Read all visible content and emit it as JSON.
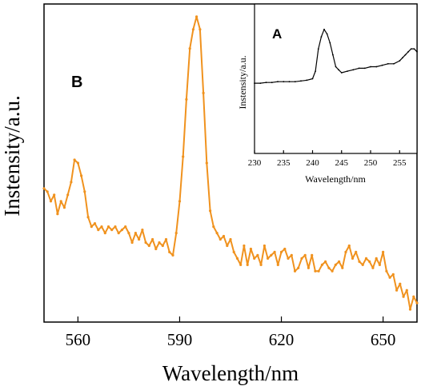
{
  "chart_data": [
    {
      "id": "main",
      "type": "line",
      "panel_label": "B",
      "title": "",
      "xlabel": "Wavelength/nm",
      "ylabel": "Instensity/a.u.",
      "xlim": [
        550,
        660
      ],
      "ylim": [
        0,
        100
      ],
      "y_ticks_labeled": false,
      "x_ticks": [
        560,
        590,
        620,
        650
      ],
      "x_tick_labels": [
        "560",
        "590",
        "620",
        "650"
      ],
      "line_color": "#F0921E",
      "grid": false,
      "legend": "none",
      "series": [
        {
          "x": [
            550,
            551,
            552,
            553,
            554,
            555,
            556,
            557,
            558,
            559,
            560,
            561,
            562,
            563,
            564,
            565,
            566,
            567,
            568,
            569,
            570,
            571,
            572,
            573,
            574,
            575,
            576,
            577,
            578,
            579,
            580,
            581,
            582,
            583,
            584,
            585,
            586,
            587,
            588,
            589,
            590,
            591,
            592,
            593,
            594,
            595,
            596,
            597,
            598,
            599,
            600,
            601,
            602,
            603,
            604,
            605,
            606,
            607,
            608,
            609,
            610,
            611,
            612,
            613,
            614,
            615,
            616,
            617,
            618,
            619,
            620,
            621,
            622,
            623,
            624,
            625,
            626,
            627,
            628,
            629,
            630,
            631,
            632,
            633,
            634,
            635,
            636,
            637,
            638,
            639,
            640,
            641,
            642,
            643,
            644,
            645,
            646,
            647,
            648,
            649,
            650,
            651,
            652,
            653,
            654,
            655,
            656,
            657,
            658,
            659,
            660
          ],
          "y": [
            42,
            41,
            38,
            40,
            34,
            38,
            36,
            40,
            44,
            51,
            50,
            46,
            41,
            33,
            30,
            31,
            29,
            30,
            28,
            30,
            29,
            30,
            28,
            29,
            30,
            28,
            25,
            28,
            26,
            29,
            25,
            24,
            26,
            23,
            25,
            24,
            26,
            22,
            21,
            28,
            38,
            52,
            70,
            86,
            92,
            96,
            92,
            72,
            50,
            35,
            30,
            28,
            26,
            27,
            24,
            26,
            22,
            20,
            18,
            24,
            18,
            23,
            20,
            21,
            18,
            24,
            20,
            21,
            22,
            18,
            22,
            23,
            20,
            21,
            16,
            17,
            20,
            21,
            17,
            21,
            16,
            16,
            18,
            19,
            17,
            16,
            18,
            19,
            17,
            22,
            24,
            20,
            22,
            19,
            18,
            20,
            19,
            17,
            20,
            18,
            22,
            16,
            14,
            15,
            10,
            12,
            8,
            10,
            4,
            8,
            6
          ]
        }
      ]
    },
    {
      "id": "inset",
      "type": "line",
      "panel_label": "A",
      "title": "",
      "xlabel": "Wavelength/nm",
      "ylabel": "Instensity/a.u.",
      "xlim": [
        230,
        258
      ],
      "ylim": [
        0,
        100
      ],
      "y_ticks_labeled": false,
      "x_ticks": [
        230,
        235,
        240,
        245,
        250,
        255
      ],
      "x_tick_labels": [
        "230",
        "235",
        "240",
        "245",
        "250",
        "255"
      ],
      "line_color": "#000000",
      "grid": false,
      "legend": "none",
      "series": [
        {
          "x": [
            230,
            231,
            232,
            233,
            234,
            235,
            236,
            237,
            238,
            239,
            240,
            240.5,
            241,
            241.5,
            242,
            242.5,
            243,
            243.5,
            244,
            244.5,
            245,
            246,
            247,
            248,
            249,
            250,
            251,
            252,
            253,
            254,
            255,
            255.5,
            256,
            256.5,
            257,
            257.5,
            258
          ],
          "y": [
            47,
            47,
            47.5,
            47.5,
            48,
            48,
            48,
            48,
            48.5,
            49,
            50,
            55,
            70,
            78,
            83,
            80,
            74,
            66,
            58,
            56,
            54,
            55,
            56,
            57,
            57,
            58,
            58,
            59,
            60,
            60,
            62,
            64,
            66,
            68,
            70,
            70,
            68
          ]
        }
      ]
    }
  ]
}
